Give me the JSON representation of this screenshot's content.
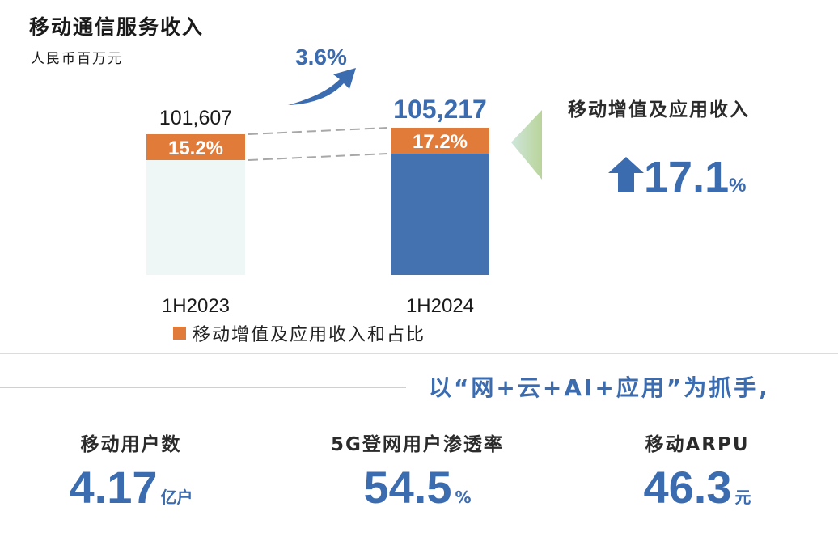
{
  "title": "移动通信服务收入",
  "unit": "人民币百万元",
  "chart_data": {
    "type": "bar",
    "categories": [
      "1H2023",
      "1H2024"
    ],
    "totals": [
      101607,
      105217
    ],
    "total_labels": [
      "101,607",
      "105,217"
    ],
    "series": [
      {
        "name": "移动增值及应用收入和占比",
        "share_percent": [
          15.2,
          17.2
        ],
        "labels": [
          "15.2%",
          "17.2%"
        ],
        "color": "#e07b39"
      }
    ],
    "base_colors": [
      "#eef6f6",
      "#4472b0"
    ],
    "growth_label": "3.6%",
    "legend": "移动增值及应用收入和占比"
  },
  "vas": {
    "title": "移动增值及应用收入",
    "growth": "17.1",
    "growth_unit": "%"
  },
  "slogan": "以“网+云+AI+应用”为抓手,",
  "metrics": [
    {
      "label": "移动用户数",
      "value": "4.17",
      "unit": "亿户"
    },
    {
      "label": "5G登网用户渗透率",
      "value": "54.5",
      "unit": "%"
    },
    {
      "label": "移动ARPU",
      "value": "46.3",
      "unit": "元"
    }
  ],
  "colors": {
    "accent": "#3b6cb0",
    "orange": "#e07b39"
  }
}
